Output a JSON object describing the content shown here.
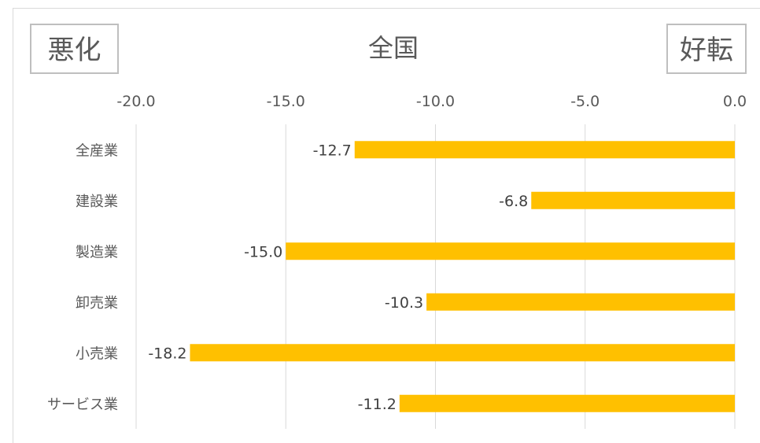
{
  "chart_data": {
    "type": "bar",
    "orientation": "horizontal",
    "title": "全国",
    "left_label": "悪化",
    "right_label": "好転",
    "categories": [
      "全産業",
      "建設業",
      "製造業",
      "卸売業",
      "小売業",
      "サービス業"
    ],
    "values": [
      -12.7,
      -6.8,
      -15.0,
      -10.3,
      -18.2,
      -11.2
    ],
    "data_labels": [
      "-12.7",
      "-6.8",
      "-15.0",
      "-10.3",
      "-18.2",
      "-11.2"
    ],
    "xlim": [
      -20.0,
      0.0
    ],
    "ticks": [
      -20.0,
      -15.0,
      -10.0,
      -5.0,
      0.0
    ],
    "tick_labels": [
      "-20.0",
      "-15.0",
      "-10.0",
      "-5.0",
      "0.0"
    ],
    "axis_position": "top",
    "grid": true,
    "legend": "none",
    "bar_color": "#FFC000",
    "grid_color": "#d9d9d9"
  }
}
